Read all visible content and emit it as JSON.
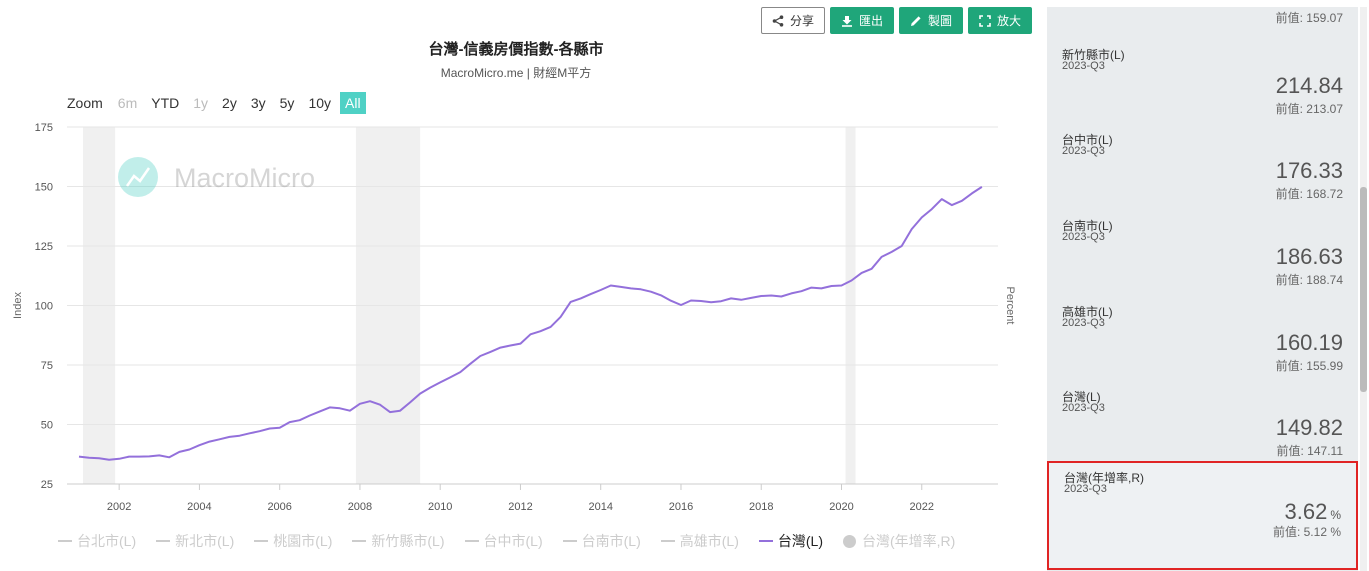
{
  "toolbar": {
    "share": "分享",
    "export": "匯出",
    "draw": "製圖",
    "enlarge": "放大"
  },
  "chart_data": {
    "type": "line",
    "title": "台灣-信義房價指數-各縣市",
    "subtitle": "MacroMicro.me | 財經M平方",
    "watermark": "MacroMicro",
    "ylabel": "Index",
    "y2label": "Percent",
    "ylim": [
      25,
      175
    ],
    "yticks": [
      25,
      50,
      75,
      100,
      125,
      150,
      175
    ],
    "xlim": [
      2000.7,
      2023.9
    ],
    "xticks": [
      "2002",
      "2004",
      "2006",
      "2008",
      "2010",
      "2012",
      "2014",
      "2016",
      "2018",
      "2020",
      "2022"
    ],
    "grid": true,
    "recessions": [
      [
        2001.1,
        2001.9
      ],
      [
        2007.9,
        2009.5
      ],
      [
        2020.1,
        2020.35
      ]
    ],
    "series": [
      {
        "name": "台灣(L)",
        "color": "#9370db",
        "x": [
          2001.0,
          2001.25,
          2001.5,
          2001.75,
          2002.0,
          2002.25,
          2002.5,
          2002.75,
          2003.0,
          2003.25,
          2003.5,
          2003.75,
          2004.0,
          2004.25,
          2004.5,
          2004.75,
          2005.0,
          2005.25,
          2005.5,
          2005.75,
          2006.0,
          2006.25,
          2006.5,
          2006.75,
          2007.0,
          2007.25,
          2007.5,
          2007.75,
          2008.0,
          2008.25,
          2008.5,
          2008.75,
          2009.0,
          2009.25,
          2009.5,
          2009.75,
          2010.0,
          2010.25,
          2010.5,
          2010.75,
          2011.0,
          2011.25,
          2011.5,
          2011.75,
          2012.0,
          2012.25,
          2012.5,
          2012.75,
          2013.0,
          2013.25,
          2013.5,
          2013.75,
          2014.0,
          2014.25,
          2014.5,
          2014.75,
          2015.0,
          2015.25,
          2015.5,
          2015.75,
          2016.0,
          2016.25,
          2016.5,
          2016.75,
          2017.0,
          2017.25,
          2017.5,
          2017.75,
          2018.0,
          2018.25,
          2018.5,
          2018.75,
          2019.0,
          2019.25,
          2019.5,
          2019.75,
          2020.0,
          2020.25,
          2020.5,
          2020.75,
          2021.0,
          2021.25,
          2021.5,
          2021.75,
          2022.0,
          2022.25,
          2022.5,
          2022.75,
          2023.0,
          2023.25,
          2023.5
        ],
        "values": [
          36.5,
          36.0,
          35.8,
          35.2,
          35.6,
          36.5,
          36.5,
          36.6,
          37.0,
          36.2,
          38.5,
          39.5,
          41.3,
          42.8,
          43.8,
          44.8,
          45.3,
          46.3,
          47.2,
          48.3,
          48.6,
          51.0,
          51.8,
          53.8,
          55.5,
          57.2,
          56.8,
          55.8,
          58.7,
          59.8,
          58.3,
          55.2,
          55.8,
          59.3,
          63.0,
          65.5,
          67.7,
          69.8,
          72.0,
          75.5,
          78.8,
          80.5,
          82.3,
          83.2,
          84.0,
          87.9,
          89.2,
          91.0,
          95.2,
          101.5,
          103.0,
          104.8,
          106.5,
          108.4,
          107.8,
          107.2,
          106.8,
          105.8,
          104.3,
          102.0,
          100.2,
          102.1,
          101.9,
          101.4,
          101.8,
          103.0,
          102.4,
          103.2,
          104.0,
          104.2,
          103.8,
          105.1,
          106.0,
          107.5,
          107.2,
          108.2,
          108.4,
          110.5,
          113.7,
          115.4,
          120.4,
          122.5,
          125.0,
          132.1,
          137.0,
          140.5,
          144.7,
          142.2,
          144.0,
          147.11,
          149.82
        ]
      }
    ]
  },
  "zoom": {
    "label": "Zoom",
    "buttons": [
      {
        "label": "6m",
        "state": "disabled"
      },
      {
        "label": "YTD",
        "state": "normal"
      },
      {
        "label": "1y",
        "state": "disabled"
      },
      {
        "label": "2y",
        "state": "normal"
      },
      {
        "label": "3y",
        "state": "normal"
      },
      {
        "label": "5y",
        "state": "normal"
      },
      {
        "label": "10y",
        "state": "normal"
      },
      {
        "label": "All",
        "state": "active"
      }
    ]
  },
  "legend": [
    {
      "label": "台北市(L)",
      "on": false,
      "marker": "line"
    },
    {
      "label": "新北市(L)",
      "on": false,
      "marker": "line"
    },
    {
      "label": "桃園市(L)",
      "on": false,
      "marker": "line"
    },
    {
      "label": "新竹縣市(L)",
      "on": false,
      "marker": "line"
    },
    {
      "label": "台中市(L)",
      "on": false,
      "marker": "line"
    },
    {
      "label": "台南市(L)",
      "on": false,
      "marker": "line"
    },
    {
      "label": "高雄市(L)",
      "on": false,
      "marker": "line"
    },
    {
      "label": "台灣(L)",
      "on": true,
      "marker": "line"
    },
    {
      "label": "台灣(年增率,R)",
      "on": false,
      "marker": "dot"
    }
  ],
  "panel": {
    "top_prev": "前值: 159.07",
    "cards": [
      {
        "name": "新竹縣市(L)",
        "period": "2023-Q3",
        "value": "214.84",
        "prev": "前值: 213.07",
        "unit": ""
      },
      {
        "name": "台中市(L)",
        "period": "2023-Q3",
        "value": "176.33",
        "prev": "前值: 168.72",
        "unit": ""
      },
      {
        "name": "台南市(L)",
        "period": "2023-Q3",
        "value": "186.63",
        "prev": "前值: 188.74",
        "unit": ""
      },
      {
        "name": "高雄市(L)",
        "period": "2023-Q3",
        "value": "160.19",
        "prev": "前值: 155.99",
        "unit": ""
      },
      {
        "name": "台灣(L)",
        "period": "2023-Q3",
        "value": "149.82",
        "prev": "前值: 147.11",
        "unit": ""
      },
      {
        "name": "台灣(年增率,R)",
        "period": "2023-Q3",
        "value": "3.62",
        "prev": "前值: 5.12 %",
        "unit": "%"
      }
    ]
  }
}
